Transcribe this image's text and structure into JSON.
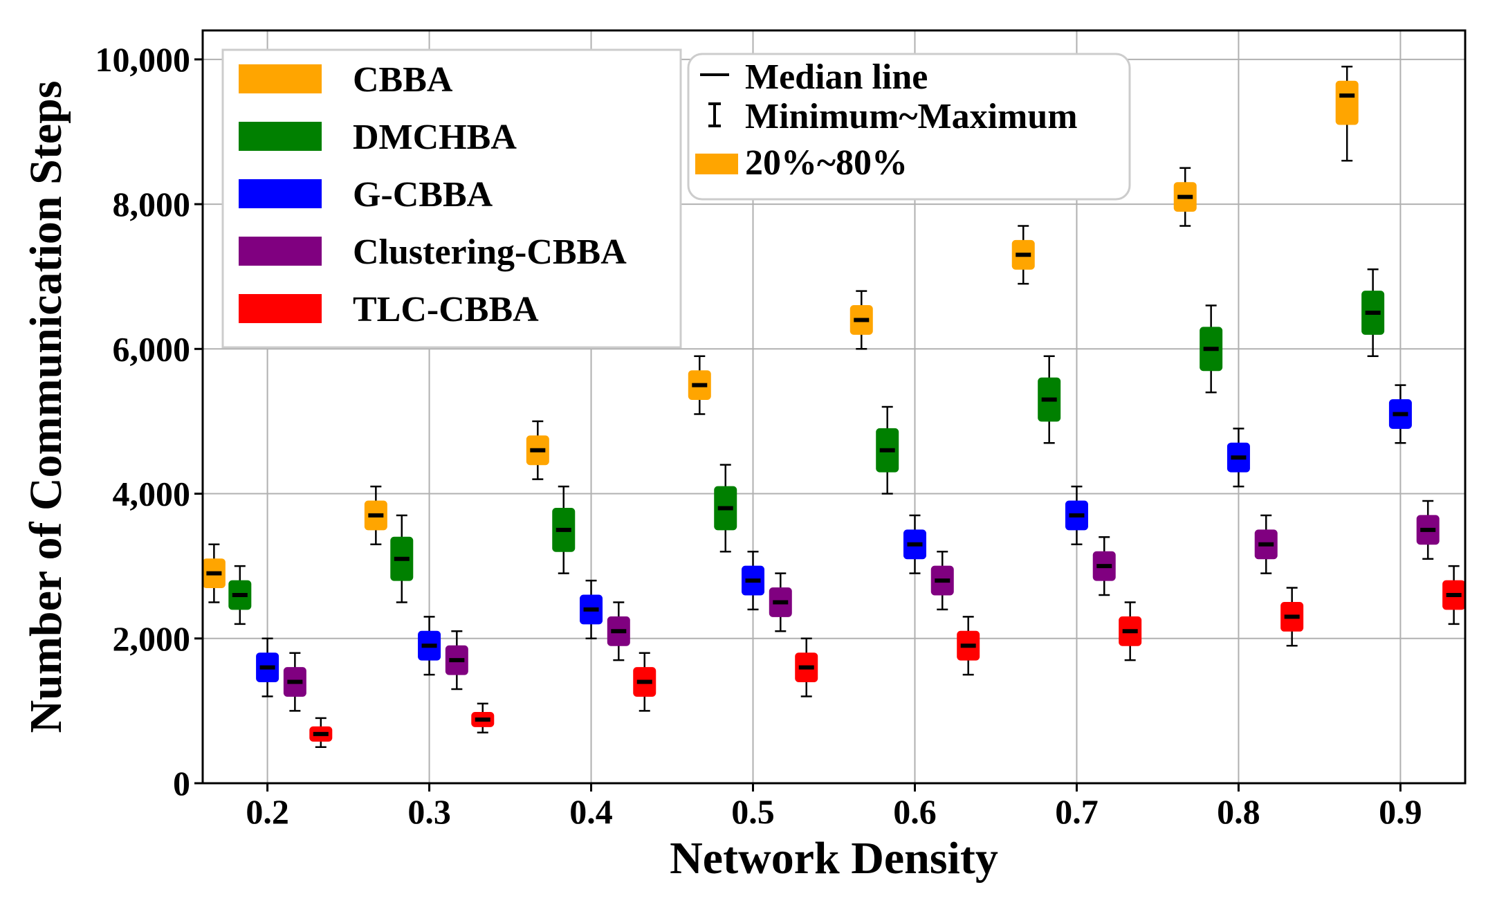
{
  "chart_data": {
    "type": "box",
    "xlabel": "Network Density",
    "ylabel": "Number of Communication Steps",
    "ylim": [
      0,
      10400
    ],
    "yticks": [
      0,
      2000,
      4000,
      6000,
      8000,
      10000
    ],
    "ytick_labels": [
      "0",
      "2,000",
      "4,000",
      "6,000",
      "8,000",
      "10,000"
    ],
    "xlim": [
      0.16,
      0.94
    ],
    "categories": [
      "0.2",
      "0.3",
      "0.4",
      "0.5",
      "0.6",
      "0.7",
      "0.8",
      "0.9"
    ],
    "grid": true,
    "legend_series_position": "top-left",
    "legend_key_position": "top-center",
    "legend_key": {
      "median": "Median line",
      "range": "Minimum~Maximum",
      "iqr": "20%~80%",
      "iqr_color": "#FFA500"
    },
    "series": [
      {
        "name": "CBBA",
        "color": "#FFA500",
        "offset": -0.033,
        "boxes": [
          {
            "x": 0.2,
            "min": 2500,
            "q1": 2700,
            "median": 2900,
            "q3": 3100,
            "max": 3300
          },
          {
            "x": 0.3,
            "min": 3300,
            "q1": 3500,
            "median": 3700,
            "q3": 3900,
            "max": 4100
          },
          {
            "x": 0.4,
            "min": 4200,
            "q1": 4400,
            "median": 4600,
            "q3": 4800,
            "max": 5000
          },
          {
            "x": 0.5,
            "min": 5100,
            "q1": 5300,
            "median": 5500,
            "q3": 5700,
            "max": 5900
          },
          {
            "x": 0.6,
            "min": 6000,
            "q1": 6200,
            "median": 6400,
            "q3": 6600,
            "max": 6800
          },
          {
            "x": 0.7,
            "min": 6900,
            "q1": 7100,
            "median": 7300,
            "q3": 7500,
            "max": 7700
          },
          {
            "x": 0.8,
            "min": 7700,
            "q1": 7900,
            "median": 8100,
            "q3": 8300,
            "max": 8500
          },
          {
            "x": 0.9,
            "min": 8600,
            "q1": 9100,
            "median": 9500,
            "q3": 9700,
            "max": 9900
          }
        ]
      },
      {
        "name": "DMCHBA",
        "color": "#008000",
        "offset": -0.017,
        "boxes": [
          {
            "x": 0.2,
            "min": 2200,
            "q1": 2400,
            "median": 2600,
            "q3": 2800,
            "max": 3000
          },
          {
            "x": 0.3,
            "min": 2500,
            "q1": 2800,
            "median": 3100,
            "q3": 3400,
            "max": 3700
          },
          {
            "x": 0.4,
            "min": 2900,
            "q1": 3200,
            "median": 3500,
            "q3": 3800,
            "max": 4100
          },
          {
            "x": 0.5,
            "min": 3200,
            "q1": 3500,
            "median": 3800,
            "q3": 4100,
            "max": 4400
          },
          {
            "x": 0.6,
            "min": 4000,
            "q1": 4300,
            "median": 4600,
            "q3": 4900,
            "max": 5200
          },
          {
            "x": 0.7,
            "min": 4700,
            "q1": 5000,
            "median": 5300,
            "q3": 5600,
            "max": 5900
          },
          {
            "x": 0.8,
            "min": 5400,
            "q1": 5700,
            "median": 6000,
            "q3": 6300,
            "max": 6600
          },
          {
            "x": 0.9,
            "min": 5900,
            "q1": 6200,
            "median": 6500,
            "q3": 6800,
            "max": 7100
          }
        ]
      },
      {
        "name": "G-CBBA",
        "color": "#0000FF",
        "offset": 0.0,
        "boxes": [
          {
            "x": 0.2,
            "min": 1200,
            "q1": 1400,
            "median": 1600,
            "q3": 1800,
            "max": 2000
          },
          {
            "x": 0.3,
            "min": 1500,
            "q1": 1700,
            "median": 1900,
            "q3": 2100,
            "max": 2300
          },
          {
            "x": 0.4,
            "min": 2000,
            "q1": 2200,
            "median": 2400,
            "q3": 2600,
            "max": 2800
          },
          {
            "x": 0.5,
            "min": 2400,
            "q1": 2600,
            "median": 2800,
            "q3": 3000,
            "max": 3200
          },
          {
            "x": 0.6,
            "min": 2900,
            "q1": 3100,
            "median": 3300,
            "q3": 3500,
            "max": 3700
          },
          {
            "x": 0.7,
            "min": 3300,
            "q1": 3500,
            "median": 3700,
            "q3": 3900,
            "max": 4100
          },
          {
            "x": 0.8,
            "min": 4100,
            "q1": 4300,
            "median": 4500,
            "q3": 4700,
            "max": 4900
          },
          {
            "x": 0.9,
            "min": 4700,
            "q1": 4900,
            "median": 5100,
            "q3": 5300,
            "max": 5500
          }
        ]
      },
      {
        "name": "Clustering-CBBA",
        "color": "#800080",
        "offset": 0.017,
        "boxes": [
          {
            "x": 0.2,
            "min": 1000,
            "q1": 1200,
            "median": 1400,
            "q3": 1600,
            "max": 1800
          },
          {
            "x": 0.3,
            "min": 1300,
            "q1": 1500,
            "median": 1700,
            "q3": 1900,
            "max": 2100
          },
          {
            "x": 0.4,
            "min": 1700,
            "q1": 1900,
            "median": 2100,
            "q3": 2300,
            "max": 2500
          },
          {
            "x": 0.5,
            "min": 2100,
            "q1": 2300,
            "median": 2500,
            "q3": 2700,
            "max": 2900
          },
          {
            "x": 0.6,
            "min": 2400,
            "q1": 2600,
            "median": 2800,
            "q3": 3000,
            "max": 3200
          },
          {
            "x": 0.7,
            "min": 2600,
            "q1": 2800,
            "median": 3000,
            "q3": 3200,
            "max": 3400
          },
          {
            "x": 0.8,
            "min": 2900,
            "q1": 3100,
            "median": 3300,
            "q3": 3500,
            "max": 3700
          },
          {
            "x": 0.9,
            "min": 3100,
            "q1": 3300,
            "median": 3500,
            "q3": 3700,
            "max": 3900
          }
        ]
      },
      {
        "name": "TLC-CBBA",
        "color": "#FF0000",
        "offset": 0.033,
        "boxes": [
          {
            "x": 0.2,
            "min": 500,
            "q1": 580,
            "median": 680,
            "q3": 780,
            "max": 900
          },
          {
            "x": 0.3,
            "min": 700,
            "q1": 780,
            "median": 880,
            "q3": 980,
            "max": 1100
          },
          {
            "x": 0.4,
            "min": 1000,
            "q1": 1200,
            "median": 1400,
            "q3": 1600,
            "max": 1800
          },
          {
            "x": 0.5,
            "min": 1200,
            "q1": 1400,
            "median": 1600,
            "q3": 1800,
            "max": 2000
          },
          {
            "x": 0.6,
            "min": 1500,
            "q1": 1700,
            "median": 1900,
            "q3": 2100,
            "max": 2300
          },
          {
            "x": 0.7,
            "min": 1700,
            "q1": 1900,
            "median": 2100,
            "q3": 2300,
            "max": 2500
          },
          {
            "x": 0.8,
            "min": 1900,
            "q1": 2100,
            "median": 2300,
            "q3": 2500,
            "max": 2700
          },
          {
            "x": 0.9,
            "min": 2200,
            "q1": 2400,
            "median": 2600,
            "q3": 2800,
            "max": 3000
          }
        ]
      }
    ]
  }
}
